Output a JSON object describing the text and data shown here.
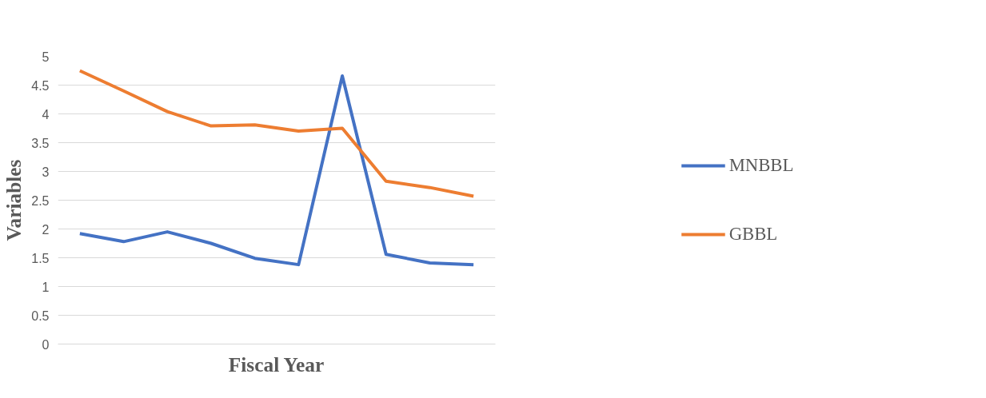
{
  "chart_data": {
    "type": "line",
    "xlabel": "Fiscal Year",
    "ylabel": "Variables",
    "categories": [
      null,
      null,
      null,
      null,
      null,
      null,
      null,
      null,
      null,
      null
    ],
    "series": [
      {
        "name": "MNBBL",
        "color": "#4472c4",
        "values": [
          1.92,
          1.78,
          1.95,
          1.75,
          1.49,
          1.38,
          4.66,
          1.56,
          1.41,
          1.38
        ]
      },
      {
        "name": "GBBL",
        "color": "#ed7d31",
        "values": [
          4.75,
          4.4,
          4.04,
          3.79,
          3.81,
          3.7,
          3.75,
          2.83,
          2.72,
          2.57
        ]
      }
    ],
    "ylim": [
      0,
      5
    ],
    "yticks": [
      0,
      0.5,
      1,
      1.5,
      2,
      2.5,
      3,
      3.5,
      4,
      4.5,
      5
    ],
    "grid": "y",
    "legend": "right",
    "marker": "none",
    "line_style": "solid"
  }
}
